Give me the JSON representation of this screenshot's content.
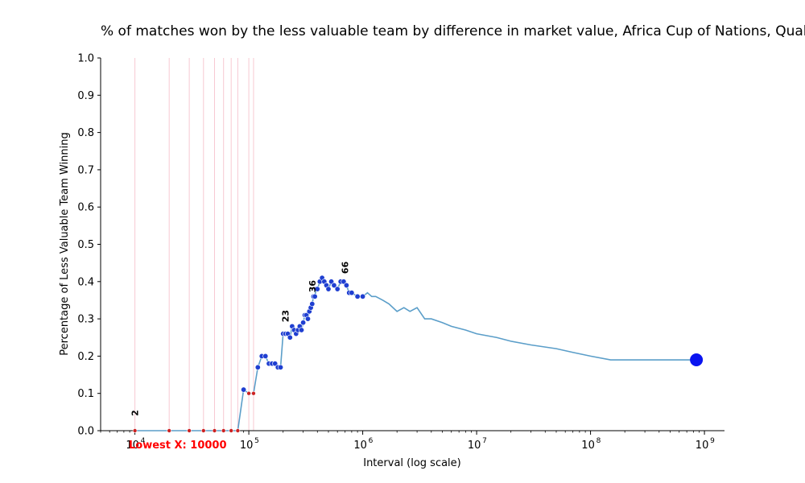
{
  "chart_data": {
    "type": "line",
    "title": "% of matches won by the less valuable team by difference in market value, Africa Cup of Nations, Qualifiers",
    "xlabel": "Interval (log scale)",
    "ylabel": "Percentage of Less Valuable Team Winning",
    "x_scale": "log",
    "xlim": [
      5000,
      1500000000
    ],
    "ylim": [
      0,
      1.0
    ],
    "y_ticks": [
      "0.0",
      "0.1",
      "0.2",
      "0.3",
      "0.4",
      "0.5",
      "0.6",
      "0.7",
      "0.8",
      "0.9",
      "1.0"
    ],
    "x_ticks": [
      {
        "value": 10000,
        "base": "10",
        "exp": "4"
      },
      {
        "value": 100000,
        "base": "10",
        "exp": "5"
      },
      {
        "value": 1000000,
        "base": "10",
        "exp": "6"
      },
      {
        "value": 10000000,
        "base": "10",
        "exp": "7"
      },
      {
        "value": 100000000,
        "base": "10",
        "exp": "8"
      },
      {
        "value": 1000000000,
        "base": "10",
        "exp": "9"
      }
    ],
    "grid": false,
    "colors": {
      "line": "#5b9ec9",
      "high_point": "#1f3fd1",
      "zero_point": "#cc2222",
      "end_point": "#0a14f0",
      "vline": "#f7c9d2",
      "lowest_label": "#ff0000"
    },
    "vertical_lines_x": [
      10000,
      20000,
      30000,
      40000,
      50000,
      60000,
      70000,
      80000,
      100000,
      110000
    ],
    "series": [
      {
        "x": [
          10000,
          20000,
          30000,
          40000,
          50000,
          60000,
          70000,
          80000,
          90000,
          100000,
          110000,
          120000,
          130000,
          140000,
          150000,
          160000,
          170000,
          180000,
          190000,
          200000,
          210000,
          220000,
          230000,
          240000,
          250000,
          260000,
          270000,
          280000,
          290000,
          300000,
          310000,
          320000,
          330000,
          340000,
          350000,
          360000,
          370000,
          380000,
          390000,
          400000,
          420000,
          440000,
          460000,
          480000,
          500000,
          530000,
          560000,
          600000,
          640000,
          680000,
          720000,
          760000,
          800000,
          900000,
          1000000,
          1100000,
          1200000,
          1300000,
          1500000,
          1700000,
          2000000,
          2300000,
          2600000,
          3000000,
          3500000,
          4000000,
          5000000,
          6000000,
          8000000,
          10000000,
          15000000,
          20000000,
          30000000,
          50000000,
          70000000,
          100000000,
          150000000,
          200000000,
          300000000,
          500000000,
          850000000
        ],
        "y": [
          0.0,
          0.0,
          0.0,
          0.0,
          0.0,
          0.0,
          0.0,
          0.0,
          0.11,
          0.1,
          0.1,
          0.17,
          0.2,
          0.2,
          0.18,
          0.18,
          0.18,
          0.17,
          0.17,
          0.26,
          0.26,
          0.26,
          0.25,
          0.28,
          0.27,
          0.26,
          0.27,
          0.28,
          0.27,
          0.29,
          0.31,
          0.31,
          0.3,
          0.32,
          0.33,
          0.34,
          0.36,
          0.36,
          0.38,
          0.38,
          0.4,
          0.41,
          0.4,
          0.39,
          0.38,
          0.4,
          0.39,
          0.38,
          0.4,
          0.4,
          0.39,
          0.37,
          0.37,
          0.36,
          0.36,
          0.37,
          0.36,
          0.36,
          0.35,
          0.34,
          0.32,
          0.33,
          0.32,
          0.33,
          0.3,
          0.3,
          0.29,
          0.28,
          0.27,
          0.26,
          0.25,
          0.24,
          0.23,
          0.22,
          0.21,
          0.2,
          0.19,
          0.19,
          0.19,
          0.19,
          0.19
        ]
      }
    ],
    "count_annotations": [
      {
        "x": 10000,
        "y": 0.0,
        "text": "2"
      },
      {
        "x": 210000,
        "y": 0.26,
        "text": "23"
      },
      {
        "x": 360000,
        "y": 0.34,
        "text": "36"
      },
      {
        "x": 700000,
        "y": 0.39,
        "text": "66"
      }
    ],
    "end_point": {
      "x": 850000000,
      "y": 0.19
    },
    "lowest_label": "Lowest X: 10000"
  }
}
